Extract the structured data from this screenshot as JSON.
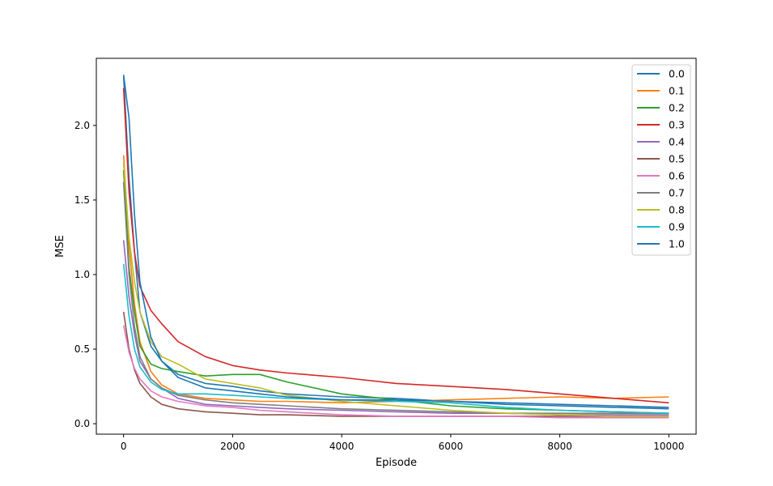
{
  "chart_data": {
    "type": "line",
    "title": "",
    "xlabel": "Episode",
    "ylabel": "MSE",
    "xlim": [
      -500,
      10500
    ],
    "ylim": [
      -0.07,
      2.45
    ],
    "xticks": [
      0,
      2000,
      4000,
      6000,
      8000,
      10000
    ],
    "xtick_labels": [
      "0",
      "2000",
      "4000",
      "6000",
      "8000",
      "10000"
    ],
    "yticks": [
      0.0,
      0.5,
      1.0,
      1.5,
      2.0
    ],
    "ytick_labels": [
      "0.0",
      "0.5",
      "1.0",
      "1.5",
      "2.0"
    ],
    "grid": false,
    "legend_position": "top-right",
    "x": [
      0,
      100,
      200,
      300,
      500,
      700,
      1000,
      1500,
      2000,
      2500,
      3000,
      4000,
      5000,
      6000,
      7000,
      8000,
      9000,
      10000
    ],
    "series": [
      {
        "name": "0.0",
        "color": "#1f77b4",
        "values": [
          2.33,
          1.65,
          1.15,
          0.75,
          0.52,
          0.42,
          0.33,
          0.27,
          0.25,
          0.22,
          0.2,
          0.18,
          0.17,
          0.15,
          0.13,
          0.12,
          0.11,
          0.1
        ]
      },
      {
        "name": "0.1",
        "color": "#ff7f0e",
        "values": [
          1.8,
          1.2,
          0.8,
          0.55,
          0.35,
          0.26,
          0.2,
          0.17,
          0.16,
          0.15,
          0.15,
          0.14,
          0.15,
          0.16,
          0.17,
          0.18,
          0.17,
          0.18
        ]
      },
      {
        "name": "0.2",
        "color": "#2ca02c",
        "values": [
          1.7,
          1.05,
          0.75,
          0.52,
          0.4,
          0.37,
          0.35,
          0.32,
          0.33,
          0.33,
          0.28,
          0.2,
          0.16,
          0.12,
          0.1,
          0.09,
          0.08,
          0.07
        ]
      },
      {
        "name": "0.3",
        "color": "#d62728",
        "values": [
          2.25,
          1.55,
          1.15,
          0.92,
          0.76,
          0.67,
          0.55,
          0.45,
          0.39,
          0.36,
          0.34,
          0.31,
          0.27,
          0.25,
          0.23,
          0.2,
          0.17,
          0.14
        ]
      },
      {
        "name": "0.4",
        "color": "#9467bd",
        "values": [
          1.23,
          0.85,
          0.6,
          0.42,
          0.3,
          0.24,
          0.17,
          0.13,
          0.12,
          0.11,
          0.1,
          0.09,
          0.08,
          0.07,
          0.07,
          0.06,
          0.06,
          0.06
        ]
      },
      {
        "name": "0.5",
        "color": "#8c564b",
        "values": [
          0.75,
          0.5,
          0.36,
          0.27,
          0.18,
          0.13,
          0.1,
          0.08,
          0.07,
          0.06,
          0.06,
          0.05,
          0.05,
          0.05,
          0.05,
          0.05,
          0.05,
          0.05
        ]
      },
      {
        "name": "0.6",
        "color": "#e377c2",
        "values": [
          0.66,
          0.48,
          0.37,
          0.3,
          0.22,
          0.18,
          0.15,
          0.12,
          0.11,
          0.09,
          0.08,
          0.06,
          0.05,
          0.05,
          0.05,
          0.04,
          0.04,
          0.04
        ]
      },
      {
        "name": "0.7",
        "color": "#7f7f7f",
        "values": [
          1.62,
          1.0,
          0.65,
          0.45,
          0.3,
          0.24,
          0.19,
          0.16,
          0.14,
          0.13,
          0.12,
          0.1,
          0.09,
          0.08,
          0.07,
          0.07,
          0.07,
          0.07
        ]
      },
      {
        "name": "0.8",
        "color": "#bcbd22",
        "values": [
          1.75,
          1.25,
          0.95,
          0.75,
          0.55,
          0.45,
          0.4,
          0.3,
          0.27,
          0.24,
          0.19,
          0.15,
          0.12,
          0.09,
          0.07,
          0.06,
          0.05,
          0.05
        ]
      },
      {
        "name": "0.9",
        "color": "#17becf",
        "values": [
          1.07,
          0.72,
          0.5,
          0.38,
          0.28,
          0.23,
          0.2,
          0.2,
          0.19,
          0.18,
          0.17,
          0.16,
          0.15,
          0.14,
          0.11,
          0.09,
          0.08,
          0.07
        ]
      },
      {
        "name": "1.0",
        "color": "#1f77b4",
        "values": [
          2.34,
          2.05,
          1.4,
          0.95,
          0.58,
          0.42,
          0.31,
          0.24,
          0.22,
          0.2,
          0.18,
          0.16,
          0.16,
          0.15,
          0.14,
          0.13,
          0.12,
          0.11
        ]
      }
    ]
  }
}
